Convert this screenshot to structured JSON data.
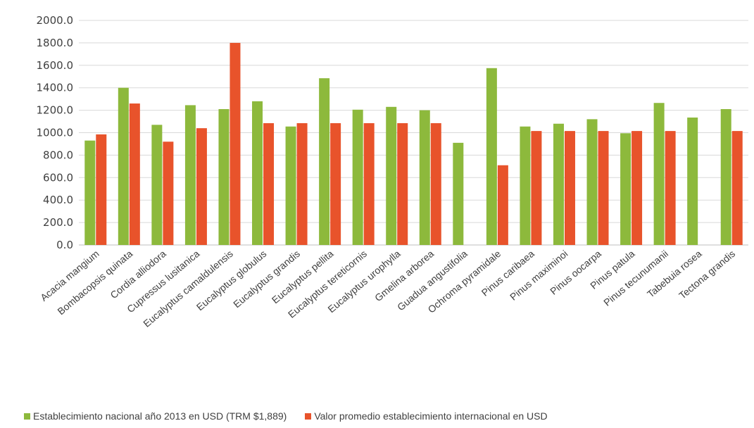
{
  "chart_data": {
    "type": "bar",
    "title": "",
    "xlabel": "",
    "ylabel": "",
    "ylim": [
      0,
      2000
    ],
    "yticks": [
      "0.0",
      "200.0",
      "400.0",
      "600.0",
      "800.0",
      "1000.0",
      "1200.0",
      "1400.0",
      "1600.0",
      "1800.0",
      "2000.0"
    ],
    "grid": true,
    "legend_position": "bottom",
    "categories": [
      "Acacia mangium",
      "Bombacopsis quinata",
      "Cordia alliodora",
      "Cupressus lusitanica",
      "Eucalyptus camaldulensis",
      "Eucalyptus globulus",
      "Eucalyptus grandis",
      "Eucalyptus pellita",
      "Eucalyptus tereticornis",
      "Eucalyptus urophylla",
      "Gmelina arborea",
      "Guadua angustifolia",
      "Ochroma pyramidale",
      "Pinus caribaea",
      "Pinus maximinoi",
      "Pinus oocarpa",
      "Pinus patula",
      "Pinus tecunumanii",
      "Tabebuia rosea",
      "Tectona grandis"
    ],
    "series": [
      {
        "name": "Establecimiento nacional año 2013 en USD (TRM $1,889)",
        "color": "#8db93c",
        "values": [
          930,
          1400,
          1070,
          1245,
          1210,
          1280,
          1055,
          1485,
          1205,
          1230,
          1200,
          910,
          1575,
          1055,
          1080,
          1120,
          995,
          1265,
          1135,
          1210
        ]
      },
      {
        "name": "Valor promedio establecimiento internacional en USD",
        "color": "#e8532b",
        "values": [
          985,
          1260,
          920,
          1040,
          1800,
          1085,
          1085,
          1085,
          1085,
          1085,
          1085,
          null,
          710,
          1015,
          1015,
          1015,
          1015,
          1015,
          null,
          1015
        ]
      }
    ]
  }
}
